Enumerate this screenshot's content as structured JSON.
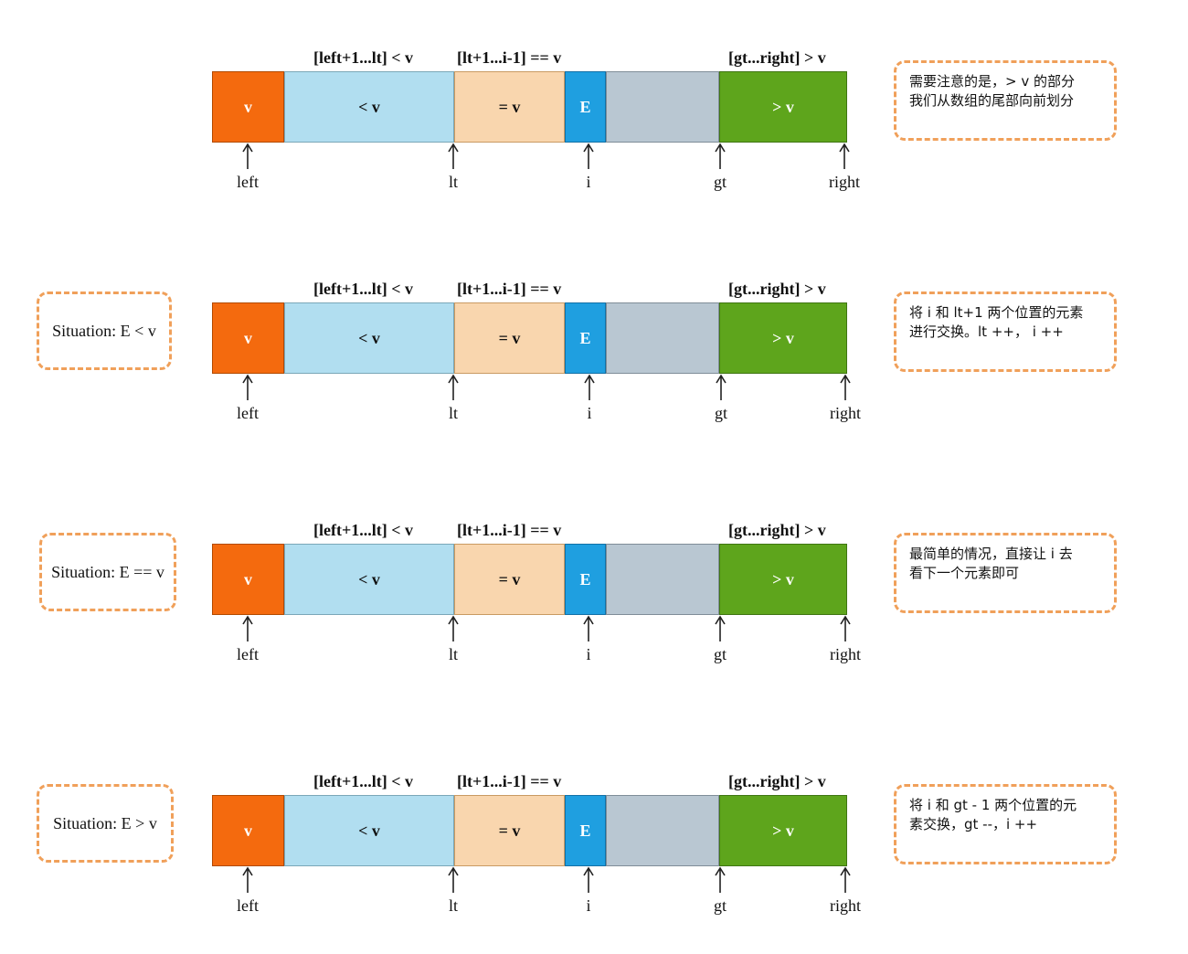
{
  "labels": {
    "header_less": "[left+1...lt] < v",
    "header_equal": "[lt+1...i-1] == v",
    "header_greater": "[gt...right] > v",
    "seg_v": "v",
    "seg_less": "< v",
    "seg_equal": "= v",
    "seg_E": "E",
    "seg_greater": "> v",
    "ptr_left": "left",
    "ptr_lt": "lt",
    "ptr_i": "i",
    "ptr_gt": "gt",
    "ptr_right": "right"
  },
  "panels": [
    {
      "situation": "",
      "note_line1": "需要注意的是，> v 的部分",
      "note_line2": "我们从数组的尾部向前划分"
    },
    {
      "situation": "Situation: E < v",
      "note_line1": "将 i 和 lt+1 两个位置的元素",
      "note_line2": "进行交换。lt ++， i ++"
    },
    {
      "situation": "Situation: E == v",
      "note_line1": "最简单的情况，直接让 i 去",
      "note_line2": "看下一个元素即可"
    },
    {
      "situation": "Situation: E > v",
      "note_line1": "将 i 和 gt - 1 两个位置的元",
      "note_line2": "素交换，gt --，i ++"
    }
  ],
  "colors": {
    "v": "#f46a0e",
    "less": "#b1def0",
    "equal": "#f9d6ae",
    "E": "#1f9fe0",
    "unprocessed": "#b9c7d2",
    "greater": "#5ea51c",
    "callout_border": "#f0a05a"
  }
}
